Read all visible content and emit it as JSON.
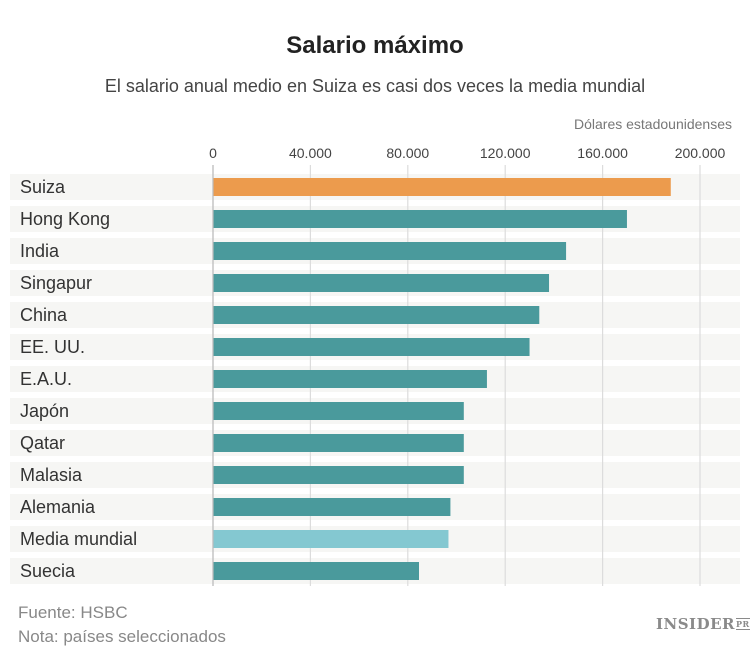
{
  "chart_data": {
    "type": "bar",
    "orientation": "horizontal",
    "title": "Salario máximo",
    "subtitle": "El salario anual medio en Suiza es casi dos veces la media mundial",
    "unit_label": "Dólares estadounidenses",
    "categories": [
      "Suiza",
      "Hong Kong",
      "India",
      "Singapur",
      "China",
      "EE. UU.",
      "E.A.U.",
      "Japón",
      "Qatar",
      "Malasia",
      "Alemania",
      "Media mundial",
      "Suecia"
    ],
    "values": [
      188000,
      170000,
      145000,
      138000,
      134000,
      130000,
      112500,
      103000,
      103000,
      103000,
      97500,
      96700,
      84600
    ],
    "bar_colors": [
      "#ec9b4d",
      "#4a9a9c",
      "#4a9a9c",
      "#4a9a9c",
      "#4a9a9c",
      "#4a9a9c",
      "#4a9a9c",
      "#4a9a9c",
      "#4a9a9c",
      "#4a9a9c",
      "#4a9a9c",
      "#84c8d1",
      "#4a9a9c"
    ],
    "xlim": [
      0,
      210000
    ],
    "ticks": [
      0,
      40000,
      80000,
      120000,
      160000,
      200000
    ],
    "tick_labels": [
      "0",
      "40.000",
      "80.000",
      "120.000",
      "160.000",
      "200.000"
    ],
    "grid": true
  },
  "footer": {
    "source": "Fuente: HSBC",
    "note": "Nota: países seleccionados",
    "logo": "INSIDER PRO"
  }
}
